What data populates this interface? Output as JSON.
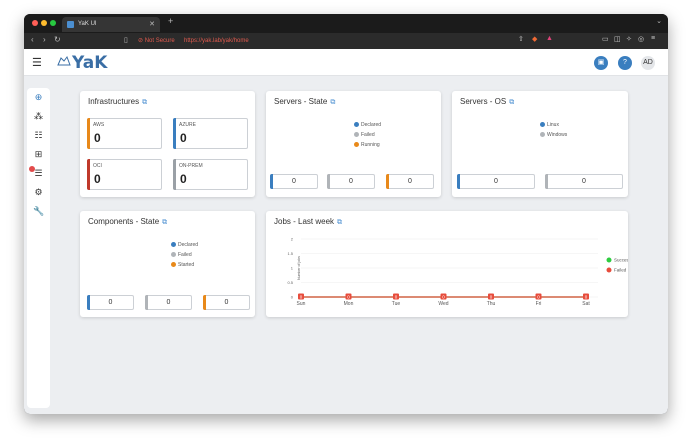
{
  "browser": {
    "tab_title": "YaK UI",
    "new_tab": "+",
    "security_label": "Not Secure",
    "url": "https://yak.lab/yak/home"
  },
  "header": {
    "logo_text": "YaK",
    "user_initials": "AD",
    "help_label": "?"
  },
  "infrastructures": {
    "title": "Infrastructures",
    "tiles": [
      {
        "label": "AWS",
        "value": "0",
        "color": "#e8891a"
      },
      {
        "label": "AZURE",
        "value": "0",
        "color": "#3a7ebf"
      },
      {
        "label": "OCI",
        "value": "0",
        "color": "#c0392b"
      },
      {
        "label": "ON-PREM",
        "value": "0",
        "color": "#9aa0a6"
      }
    ]
  },
  "servers_state": {
    "title": "Servers - State",
    "legend": [
      {
        "label": "Declared",
        "color": "#3a7ebf"
      },
      {
        "label": "Failed",
        "color": "#b0b4b8"
      },
      {
        "label": "Running",
        "color": "#e8891a"
      }
    ],
    "counters": [
      {
        "value": "0",
        "color": "#3a7ebf"
      },
      {
        "value": "0",
        "color": "#b0b4b8"
      },
      {
        "value": "0",
        "color": "#e8891a"
      }
    ]
  },
  "servers_os": {
    "title": "Servers - OS",
    "legend": [
      {
        "label": "Linux",
        "color": "#3a7ebf"
      },
      {
        "label": "Windows",
        "color": "#b0b4b8"
      }
    ],
    "counters": [
      {
        "value": "0",
        "color": "#3a7ebf"
      },
      {
        "value": "0",
        "color": "#b0b4b8"
      }
    ]
  },
  "components_state": {
    "title": "Components - State",
    "legend": [
      {
        "label": "Declared",
        "color": "#3a7ebf"
      },
      {
        "label": "Failed",
        "color": "#b0b4b8"
      },
      {
        "label": "Started",
        "color": "#e8891a"
      }
    ],
    "counters": [
      {
        "value": "0",
        "color": "#3a7ebf"
      },
      {
        "value": "0",
        "color": "#b0b4b8"
      },
      {
        "value": "0",
        "color": "#e8891a"
      }
    ]
  },
  "jobs": {
    "title": "Jobs - Last week"
  },
  "chart_data": {
    "type": "line",
    "title": "Jobs - Last week",
    "xlabel": "",
    "ylabel": "Number of jobs",
    "categories": [
      "Sun",
      "Mon",
      "Tue",
      "Wed",
      "Thu",
      "Fri",
      "Sat"
    ],
    "ylim": [
      0,
      2
    ],
    "yticks": [
      "0",
      "0.5",
      "1",
      "1.5",
      "2"
    ],
    "series": [
      {
        "name": "Success",
        "color": "#2ecc40",
        "values": [
          0,
          0,
          0,
          0,
          0,
          0,
          0
        ]
      },
      {
        "name": "Failed",
        "color": "#e74c3c",
        "values": [
          0,
          0,
          0,
          0,
          0,
          0,
          0
        ]
      }
    ],
    "data_labels": [
      "0",
      "0",
      "0",
      "0",
      "0",
      "0",
      "0"
    ],
    "legend_position": "right"
  }
}
